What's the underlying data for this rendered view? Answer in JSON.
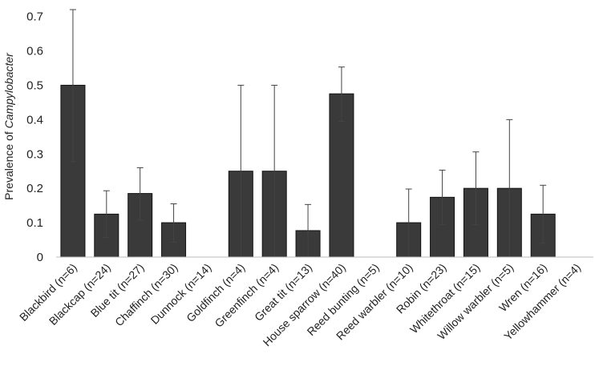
{
  "chart_data": {
    "type": "bar",
    "title": "",
    "xlabel": "",
    "ylabel": {
      "prefix": "Prevalence of ",
      "italic": "Campylobacter"
    },
    "ylim": [
      0,
      0.72
    ],
    "yticks": [
      "0",
      "0.1",
      "0.2",
      "0.3",
      "0.4",
      "0.5",
      "0.6",
      "0.7"
    ],
    "grid": false,
    "categories": [
      "Blackbird (n=6)",
      "Blackcap (n=24)",
      "Blue tit (n=27)",
      "Chaffinch (n=30)",
      "Dunnock (n=14)",
      "Goldfinch (n=4)",
      "Greenfinch (n=4)",
      "Great tit (n=13)",
      "House sparrow (n=40)",
      "Reed bunting (n=5)",
      "Reed warbler (n=10)",
      "Robin (n=23)",
      "Whitethroat (n=15)",
      "Willow warbler (n=5)",
      "Wren (n=16)",
      "Yellowhammer (n=4)"
    ],
    "values": [
      0.5,
      0.125,
      0.185,
      0.1,
      0,
      0.25,
      0.25,
      0.077,
      0.475,
      0,
      0.1,
      0.174,
      0.2,
      0.2,
      0.125,
      0
    ],
    "error_upper": [
      0.72,
      0.193,
      0.26,
      0.155,
      0,
      0.5,
      0.5,
      0.153,
      0.553,
      0,
      0.198,
      0.253,
      0.306,
      0.4,
      0.209,
      0
    ],
    "error_lower": [
      0.278,
      0.057,
      0.107,
      0.043,
      0,
      0.0,
      0.0,
      0.0,
      0.395,
      0,
      0.0,
      0.094,
      0.094,
      0.0,
      0.04,
      0
    ],
    "colors": {
      "bar_fill": "#3a3a3a",
      "bar_stroke": "#111111",
      "axis": "#bbbbbb",
      "error_bar": "#444444"
    }
  }
}
